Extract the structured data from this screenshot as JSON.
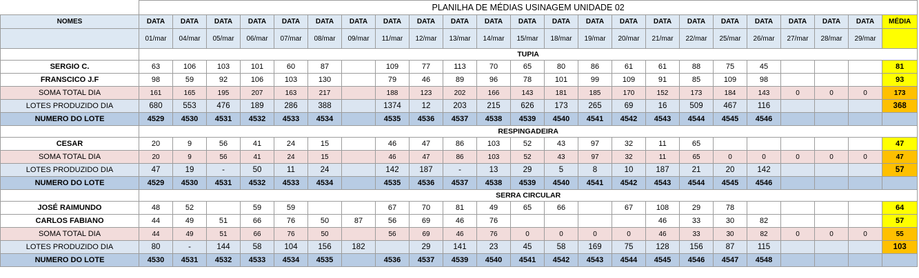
{
  "title": "PLANILHA DE MÉDIAS USINAGEM UNIDADE 02",
  "colors": {
    "header_bg": "#dde8f3",
    "soma_bg": "#f2dcdb",
    "lotes_bg": "#dbe5f1",
    "numero_bg": "#b8cce4",
    "media_yellow": "#ffff00",
    "media_orange": "#ffc000"
  },
  "header": {
    "nomes_label": "NOMES",
    "data_label": "DATA",
    "media_label": "MÉDIA",
    "dates": [
      "01/mar",
      "04/mar",
      "05/mar",
      "06/mar",
      "07/mar",
      "08/mar",
      "09/mar",
      "11/mar",
      "12/mar",
      "13/mar",
      "14/mar",
      "15/mar",
      "18/mar",
      "19/mar",
      "20/mar",
      "21/mar",
      "22/mar",
      "25/mar",
      "26/mar",
      "27/mar",
      "28/mar",
      "29/mar"
    ]
  },
  "sections": [
    {
      "title": "TUPIA",
      "rows": [
        {
          "type": "worker",
          "name": "SERGIO C.",
          "values": [
            "63",
            "106",
            "103",
            "101",
            "60",
            "87",
            "",
            "109",
            "77",
            "113",
            "70",
            "65",
            "80",
            "86",
            "61",
            "61",
            "88",
            "75",
            "45",
            "",
            "",
            ""
          ],
          "media": "81",
          "media_style": "y"
        },
        {
          "type": "worker",
          "name": "FRANSCICO J.F",
          "values": [
            "98",
            "59",
            "92",
            "106",
            "103",
            "130",
            "",
            "79",
            "46",
            "89",
            "96",
            "78",
            "101",
            "99",
            "109",
            "91",
            "85",
            "109",
            "98",
            "",
            "",
            ""
          ],
          "media": "93",
          "media_style": "y"
        },
        {
          "type": "soma",
          "name": "SOMA TOTAL DIA",
          "values": [
            "161",
            "165",
            "195",
            "207",
            "163",
            "217",
            "",
            "188",
            "123",
            "202",
            "166",
            "143",
            "181",
            "185",
            "170",
            "152",
            "173",
            "184",
            "143",
            "0",
            "0",
            "0"
          ],
          "media": "173",
          "media_style": "o"
        },
        {
          "type": "lotes",
          "name": "LOTES PRODUZIDO DIA",
          "values": [
            "680",
            "553",
            "476",
            "189",
            "286",
            "388",
            "",
            "1374",
            "12",
            "203",
            "215",
            "626",
            "173",
            "265",
            "69",
            "16",
            "509",
            "467",
            "116",
            "",
            "",
            ""
          ],
          "media": "368",
          "media_style": "o"
        },
        {
          "type": "numero",
          "name": "NUMERO DO LOTE",
          "values": [
            "4529",
            "4530",
            "4531",
            "4532",
            "4533",
            "4534",
            "",
            "4535",
            "4536",
            "4537",
            "4538",
            "4539",
            "4540",
            "4541",
            "4542",
            "4543",
            "4544",
            "4545",
            "4546",
            "",
            "",
            ""
          ],
          "media": "",
          "media_style": "n"
        }
      ]
    },
    {
      "title": "RESPINGADEIRA",
      "rows": [
        {
          "type": "worker",
          "name": "CESAR",
          "values": [
            "20",
            "9",
            "56",
            "41",
            "24",
            "15",
            "",
            "46",
            "47",
            "86",
            "103",
            "52",
            "43",
            "97",
            "32",
            "11",
            "65",
            "",
            "",
            "",
            "",
            ""
          ],
          "media": "47",
          "media_style": "y"
        },
        {
          "type": "soma",
          "name": "SOMA TOTAL DIA",
          "values": [
            "20",
            "9",
            "56",
            "41",
            "24",
            "15",
            "",
            "46",
            "47",
            "86",
            "103",
            "52",
            "43",
            "97",
            "32",
            "11",
            "65",
            "0",
            "0",
            "0",
            "0",
            "0"
          ],
          "media": "47",
          "media_style": "o"
        },
        {
          "type": "lotes",
          "name": "LOTES PRODUZIDO DIA",
          "values": [
            "47",
            "19",
            "-",
            "50",
            "11",
            "24",
            "",
            "142",
            "187",
            "-",
            "13",
            "29",
            "5",
            "8",
            "10",
            "187",
            "21",
            "20",
            "142",
            "",
            "",
            ""
          ],
          "media": "57",
          "media_style": "o"
        },
        {
          "type": "numero",
          "name": "NUMERO DO LOTE",
          "values": [
            "4529",
            "4530",
            "4531",
            "4532",
            "4533",
            "4534",
            "",
            "4535",
            "4536",
            "4537",
            "4538",
            "4539",
            "4540",
            "4541",
            "4542",
            "4543",
            "4544",
            "4545",
            "4546",
            "",
            "",
            ""
          ],
          "media": "",
          "media_style": "n"
        }
      ]
    },
    {
      "title": "SERRA CIRCULAR",
      "rows": [
        {
          "type": "worker",
          "name": "JOSÉ RAIMUNDO",
          "values": [
            "48",
            "52",
            "",
            "59",
            "59",
            "",
            "",
            "67",
            "70",
            "81",
            "49",
            "65",
            "66",
            "",
            "67",
            "108",
            "29",
            "78",
            "",
            "",
            "",
            ""
          ],
          "media": "64",
          "media_style": "y"
        },
        {
          "type": "worker",
          "name": "CARLOS FABIANO",
          "values": [
            "44",
            "49",
            "51",
            "66",
            "76",
            "50",
            "87",
            "56",
            "69",
            "46",
            "76",
            "",
            "",
            "",
            "",
            "46",
            "33",
            "30",
            "82",
            "",
            "",
            ""
          ],
          "media": "57",
          "media_style": "y"
        },
        {
          "type": "soma",
          "name": "SOMA TOTAL DIA",
          "values": [
            "44",
            "49",
            "51",
            "66",
            "76",
            "50",
            "",
            "56",
            "69",
            "46",
            "76",
            "0",
            "0",
            "0",
            "0",
            "46",
            "33",
            "30",
            "82",
            "0",
            "0",
            "0"
          ],
          "media": "55",
          "media_style": "o"
        },
        {
          "type": "lotes",
          "name": "LOTES PRODUZIDO DIA",
          "values": [
            "80",
            "-",
            "144",
            "58",
            "104",
            "156",
            "182",
            "",
            "29",
            "141",
            "23",
            "45",
            "58",
            "169",
            "75",
            "128",
            "156",
            "87",
            "115",
            "",
            "",
            ""
          ],
          "media": "103",
          "media_style": "o"
        },
        {
          "type": "numero",
          "name": "NUMERO DO LOTE",
          "values": [
            "4530",
            "4531",
            "4532",
            "4533",
            "4534",
            "4535",
            "",
            "4536",
            "4537",
            "4539",
            "4540",
            "4541",
            "4542",
            "4543",
            "4544",
            "4545",
            "4546",
            "4547",
            "4548",
            "",
            "",
            ""
          ],
          "media": "",
          "media_style": "n"
        }
      ]
    }
  ]
}
